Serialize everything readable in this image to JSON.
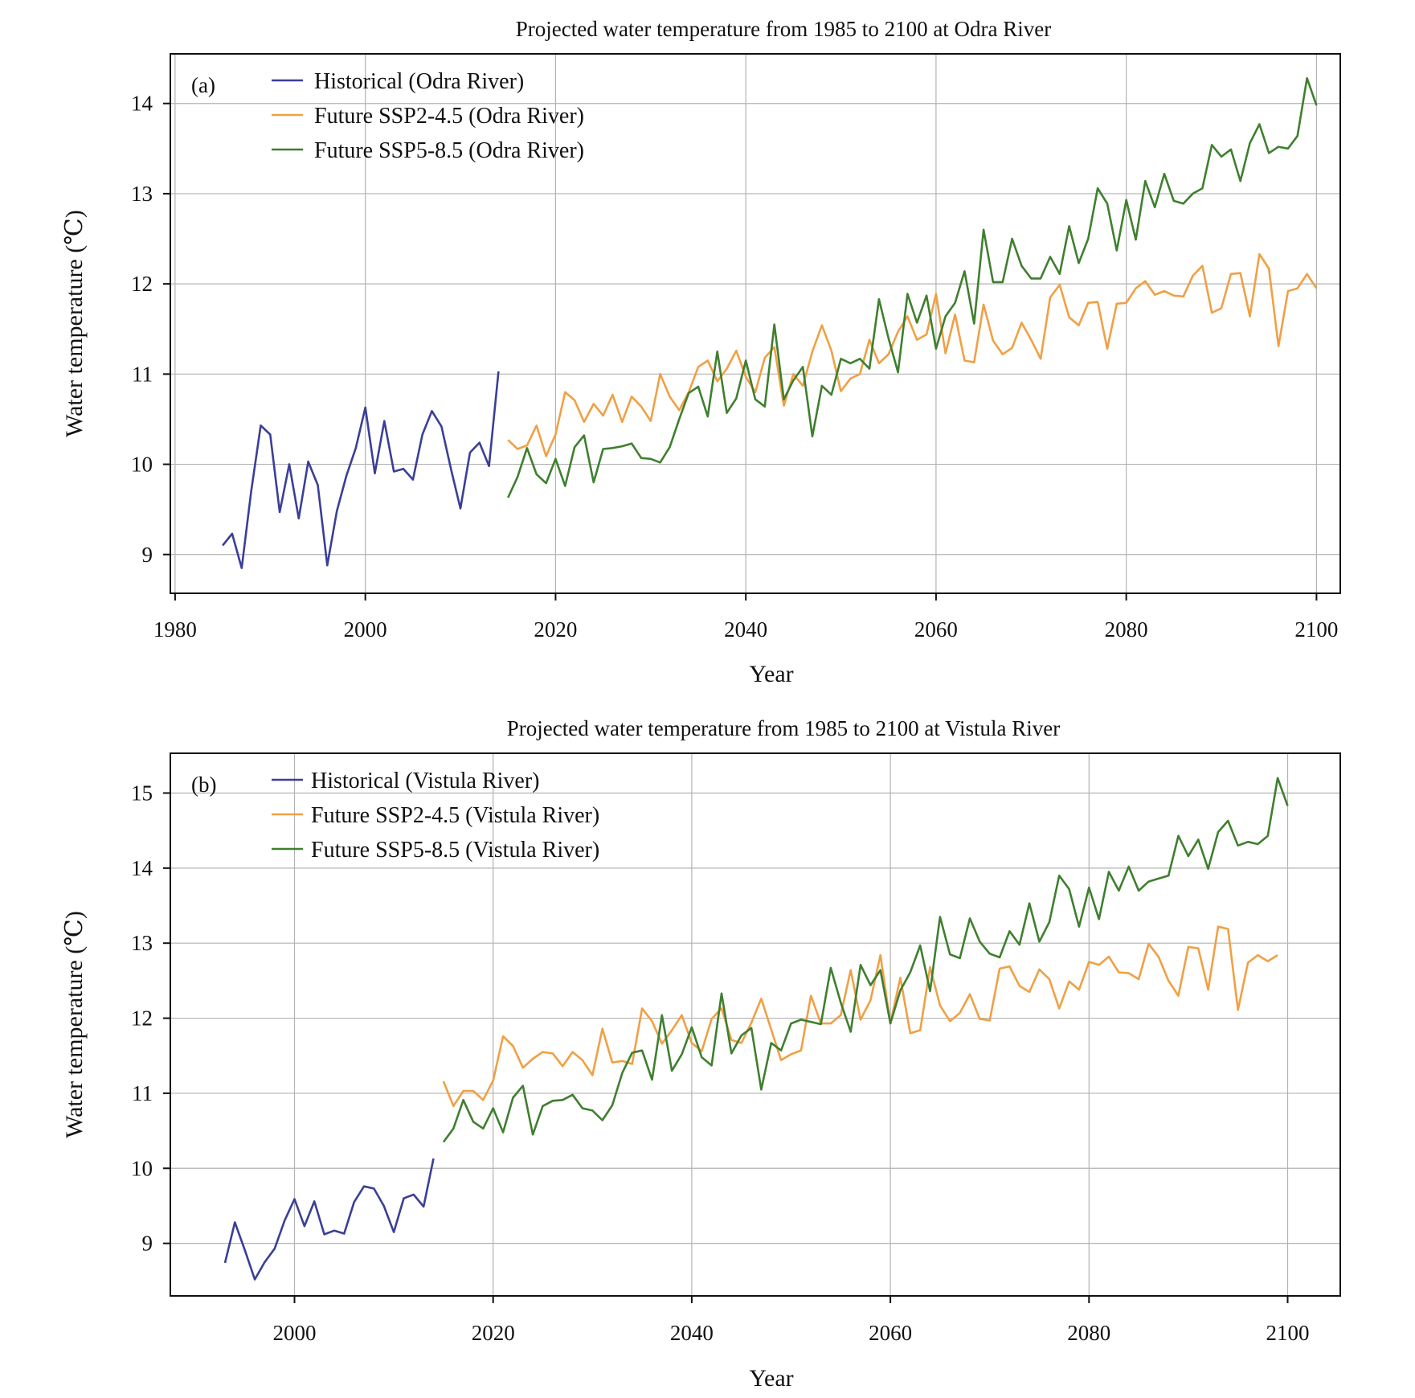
{
  "chart_data": [
    {
      "type": "line",
      "panel_label": "(a)",
      "title": "Projected water temperature from 1985 to 2100 at Odra River",
      "xlabel": "Year",
      "ylabel": "Water temperature (℃)",
      "xlim": [
        1979.5,
        2102.5
      ],
      "ylim": [
        8.57,
        14.55
      ],
      "xticks": [
        1980,
        2000,
        2020,
        2040,
        2060,
        2080,
        2100
      ],
      "yticks": [
        9,
        10,
        11,
        12,
        13,
        14
      ],
      "grid": true,
      "legend_position": "top-left",
      "series": [
        {
          "name": "Historical (Odra River)",
          "color": "#3a3f97",
          "x_start": 1985,
          "values": [
            9.1,
            9.23,
            8.85,
            9.7,
            10.43,
            10.33,
            9.47,
            10.0,
            9.4,
            10.03,
            9.77,
            8.88,
            9.48,
            9.87,
            10.18,
            10.63,
            9.9,
            10.48,
            9.92,
            9.95,
            9.83,
            10.33,
            10.59,
            10.42,
            9.95,
            9.51,
            10.13,
            10.24,
            9.98,
            11.03
          ]
        },
        {
          "name": "Future SSP2-4.5 (Odra River)",
          "color": "#f0a045",
          "x_start": 2015,
          "values": [
            10.27,
            10.17,
            10.21,
            10.43,
            10.09,
            10.33,
            10.8,
            10.71,
            10.47,
            10.67,
            10.54,
            10.77,
            10.47,
            10.75,
            10.64,
            10.48,
            11.0,
            10.75,
            10.6,
            10.8,
            11.08,
            11.15,
            10.92,
            11.06,
            11.26,
            10.97,
            10.8,
            11.18,
            11.3,
            10.65,
            11.0,
            10.87,
            11.25,
            11.54,
            11.26,
            10.81,
            10.95,
            11.0,
            11.38,
            11.12,
            11.22,
            11.47,
            11.64,
            11.38,
            11.44,
            11.89,
            11.23,
            11.66,
            11.15,
            11.13,
            11.77,
            11.37,
            11.22,
            11.29,
            11.57,
            11.38,
            11.17,
            11.85,
            11.99,
            11.63,
            11.54,
            11.79,
            11.8,
            11.28,
            11.78,
            11.79,
            11.95,
            12.03,
            11.88,
            11.92,
            11.87,
            11.86,
            12.09,
            12.2,
            11.68,
            11.73,
            12.11,
            12.12,
            11.64,
            12.33,
            12.17,
            11.31,
            11.92,
            11.95,
            12.11,
            11.95
          ]
        },
        {
          "name": "Future SSP5-8.5 (Odra River)",
          "color": "#3f7f2f",
          "x_start": 2015,
          "values": [
            9.63,
            9.86,
            10.18,
            9.89,
            9.79,
            10.06,
            9.76,
            10.19,
            10.32,
            9.8,
            10.17,
            10.18,
            10.2,
            10.23,
            10.07,
            10.06,
            10.02,
            10.19,
            10.5,
            10.79,
            10.86,
            10.53,
            11.25,
            10.57,
            10.73,
            11.15,
            10.72,
            10.64,
            11.55,
            10.72,
            10.93,
            11.08,
            10.31,
            10.87,
            10.77,
            11.17,
            11.12,
            11.17,
            11.06,
            11.83,
            11.4,
            11.02,
            11.89,
            11.57,
            11.87,
            11.28,
            11.64,
            11.79,
            12.14,
            11.56,
            12.6,
            12.02,
            12.02,
            12.5,
            12.2,
            12.06,
            12.06,
            12.3,
            12.11,
            12.64,
            12.23,
            12.5,
            13.06,
            12.89,
            12.37,
            12.93,
            12.49,
            13.14,
            12.85,
            13.22,
            12.92,
            12.89,
            13.0,
            13.06,
            13.54,
            13.41,
            13.49,
            13.14,
            13.56,
            13.77,
            13.45,
            13.52,
            13.5,
            13.64,
            14.28,
            13.98
          ]
        }
      ]
    },
    {
      "type": "line",
      "panel_label": "(b)",
      "title": "Projected water temperature from 1985 to 2100 at Vistula River",
      "xlabel": "Year",
      "ylabel": "Water temperature (℃)",
      "xlim": [
        1987.5,
        2105.3
      ],
      "ylim": [
        8.3,
        15.53
      ],
      "xticks": [
        2000,
        2020,
        2040,
        2060,
        2080,
        2100
      ],
      "yticks": [
        9,
        10,
        11,
        12,
        13,
        14,
        15
      ],
      "grid": true,
      "legend_position": "top-left",
      "series": [
        {
          "name": "Historical (Vistula River)",
          "color": "#3a3f97",
          "x_start": 1993,
          "values": [
            8.74,
            9.28,
            8.91,
            8.52,
            8.75,
            8.93,
            9.3,
            9.59,
            9.23,
            9.56,
            9.12,
            9.17,
            9.13,
            9.55,
            9.76,
            9.73,
            9.5,
            9.15,
            9.6,
            9.65,
            9.49,
            10.13
          ]
        },
        {
          "name": "Future SSP2-4.5 (Vistula River)",
          "color": "#f0a045",
          "x_start": 2015,
          "values": [
            11.16,
            10.83,
            11.03,
            11.03,
            10.91,
            11.17,
            11.76,
            11.63,
            11.34,
            11.46,
            11.55,
            11.53,
            11.36,
            11.55,
            11.44,
            11.24,
            11.86,
            11.41,
            11.43,
            11.39,
            12.13,
            11.96,
            11.66,
            11.84,
            12.04,
            11.67,
            11.56,
            11.99,
            12.13,
            11.71,
            11.67,
            11.94,
            12.26,
            11.85,
            11.44,
            11.52,
            11.57,
            12.3,
            11.93,
            11.93,
            12.04,
            12.64,
            11.98,
            12.24,
            12.84,
            11.93,
            12.54,
            11.8,
            11.84,
            12.68,
            12.17,
            11.96,
            12.07,
            12.32,
            11.99,
            11.97,
            12.66,
            12.69,
            12.43,
            12.35,
            12.65,
            12.52,
            12.13,
            12.49,
            12.38,
            12.75,
            12.71,
            12.82,
            12.61,
            12.6,
            12.52,
            12.99,
            12.82,
            12.5,
            12.3,
            12.95,
            12.93,
            12.38,
            13.22,
            13.19,
            12.11,
            12.74,
            12.84,
            12.76,
            12.84
          ]
        },
        {
          "name": "Future SSP5-8.5 (Vistula River)",
          "color": "#3f7f2f",
          "x_start": 2015,
          "values": [
            10.35,
            10.53,
            10.91,
            10.62,
            10.53,
            10.8,
            10.48,
            10.94,
            11.1,
            10.45,
            10.83,
            10.9,
            10.91,
            10.98,
            10.8,
            10.77,
            10.64,
            10.84,
            11.27,
            11.54,
            11.57,
            11.18,
            12.04,
            11.3,
            11.52,
            11.88,
            11.48,
            11.37,
            12.33,
            11.53,
            11.77,
            11.87,
            11.05,
            11.67,
            11.57,
            11.93,
            11.98,
            11.95,
            11.92,
            12.67,
            12.21,
            11.82,
            12.71,
            12.44,
            12.64,
            11.93,
            12.37,
            12.61,
            12.97,
            12.36,
            13.35,
            12.85,
            12.8,
            13.33,
            13.02,
            12.86,
            12.81,
            13.16,
            12.98,
            13.53,
            13.02,
            13.28,
            13.9,
            13.72,
            13.22,
            13.74,
            13.32,
            13.95,
            13.7,
            14.02,
            13.7,
            13.82,
            13.86,
            13.9,
            14.43,
            14.16,
            14.38,
            13.99,
            14.48,
            14.63,
            14.3,
            14.35,
            14.32,
            14.43,
            15.2,
            14.83
          ]
        }
      ]
    }
  ]
}
